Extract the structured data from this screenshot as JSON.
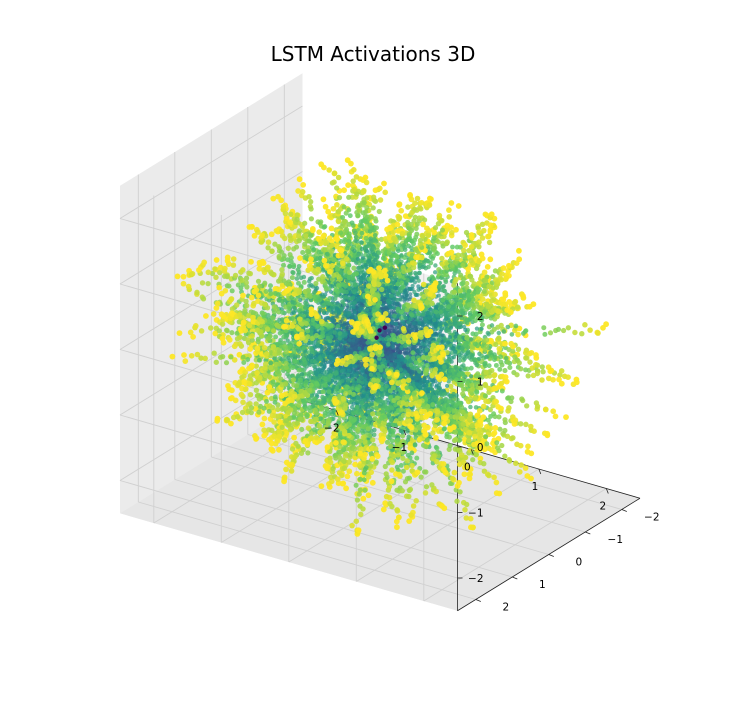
{
  "chart_data": {
    "type": "scatter",
    "projection": "3d",
    "title": "LSTM Activations 3D",
    "xlabel": "",
    "ylabel": "",
    "zlabel": "",
    "xlim": [
      -2.5,
      2.5
    ],
    "ylim": [
      -2.5,
      2.5
    ],
    "zlim": [
      -2.5,
      2.5
    ],
    "x_ticks": [
      "−2",
      "−1",
      "0",
      "1",
      "2"
    ],
    "y_ticks": [
      "−2",
      "−1",
      "0",
      "1",
      "2"
    ],
    "z_ticks": [
      "−2",
      "−1",
      "0",
      "1",
      "2"
    ],
    "grid": true,
    "colormap": "viridis",
    "colormap_stops": [
      "#440154",
      "#3b528b",
      "#21918c",
      "#5ec962",
      "#fde725"
    ],
    "pane_colors": [
      "#f2f2f2",
      "#ebebeb",
      "#e6e6e6"
    ],
    "structure": {
      "description_points": "dense radial trajectories emanating from origin, colored by step along trajectory",
      "trajectory_count": 260,
      "points_per_trajectory": 48,
      "max_radius": 2.4,
      "center": [
        0,
        0,
        0
      ]
    }
  }
}
